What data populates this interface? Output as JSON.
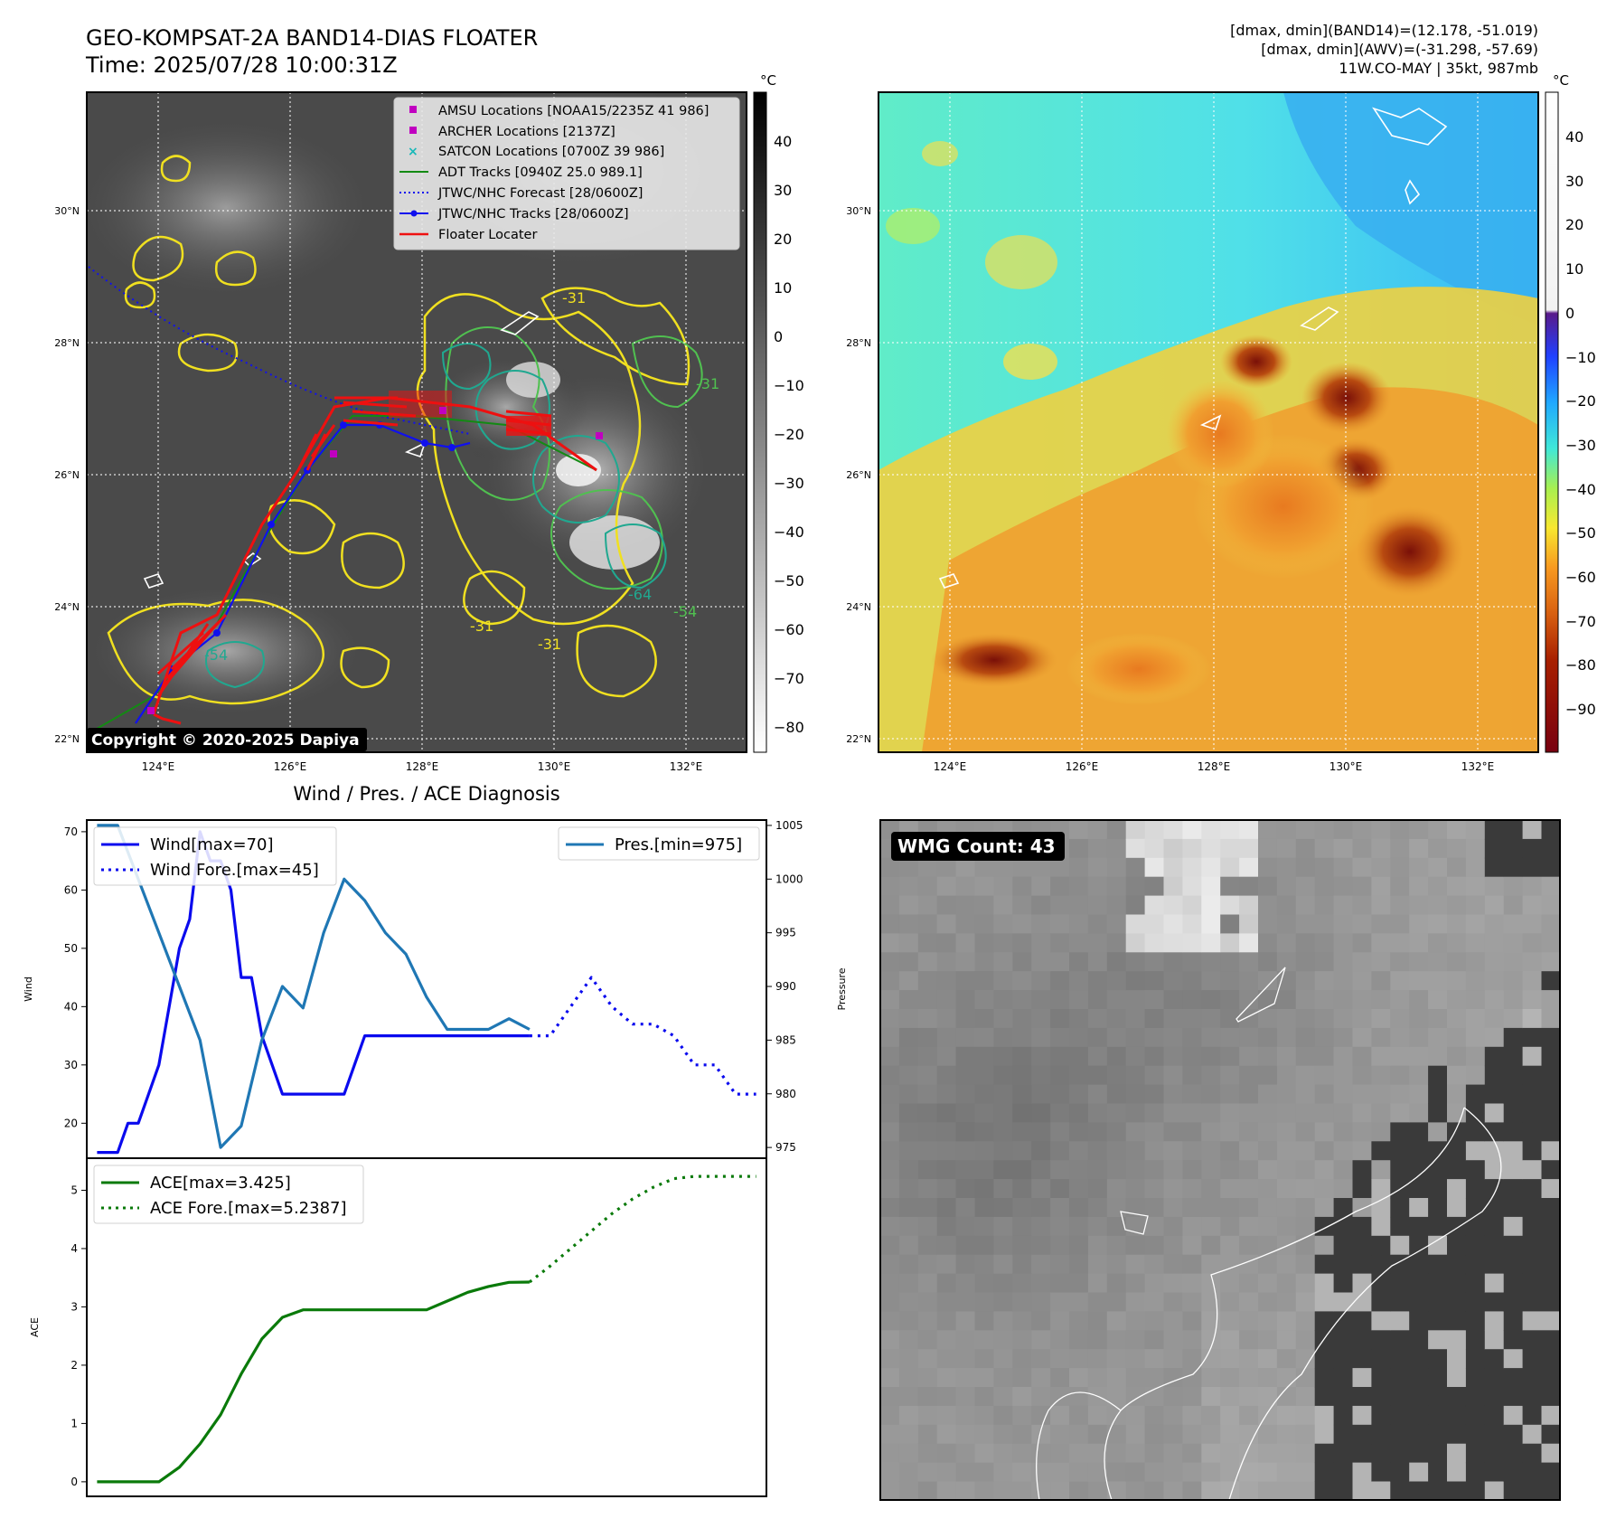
{
  "header": {
    "title": "GEO-KOMPSAT-2A BAND14-DIAS FLOATER",
    "time": "Time: 2025/07/28 10:00:31Z",
    "stats_line1": "[dmax, dmin](BAND14)=(12.178, -51.019)",
    "stats_line2": "[dmax, dmin](AWV)=(-31.298, -57.69)",
    "stats_line3": "11W.CO-MAY | 35kt, 987mb"
  },
  "map": {
    "lat_ticks": [
      "30°N",
      "28°N",
      "26°N",
      "24°N",
      "22°N"
    ],
    "lon_ticks": [
      "124°E",
      "126°E",
      "128°E",
      "130°E",
      "132°E"
    ],
    "copyright": "Copyright © 2020-2025 Dapiya",
    "contour_labels": [
      "-31",
      "-54",
      "-64",
      "-31",
      "-54",
      "-31",
      "-31"
    ]
  },
  "legend": {
    "items": [
      {
        "label": "AMSU Locations [NOAA15/2235Z 41 986]",
        "marker": "square",
        "color": "#c000c0"
      },
      {
        "label": "ARCHER Locations [2137Z]",
        "marker": "square",
        "color": "#c000c0"
      },
      {
        "label": "SATCON Locations [0700Z 39 986]",
        "marker": "x",
        "color": "#17b8b8"
      },
      {
        "label": "ADT Tracks [0940Z 25.0 989.1]",
        "marker": "line",
        "color": "#138a13"
      },
      {
        "label": "JTWC/NHC Forecast [28/0600Z]",
        "marker": "dotted",
        "color": "#1010ee"
      },
      {
        "label": "JTWC/NHC Tracks [28/0600Z]",
        "marker": "line-dot",
        "color": "#1010ee"
      },
      {
        "label": "Floater Locater",
        "marker": "line",
        "color": "#ee1010"
      }
    ]
  },
  "colorbar_gray": {
    "unit": "°C",
    "ticks": [
      "40",
      "30",
      "20",
      "10",
      "0",
      "−10",
      "−20",
      "−30",
      "−40",
      "−50",
      "−60",
      "−70",
      "−80"
    ]
  },
  "colorbar_color": {
    "unit": "°C",
    "ticks": [
      "40",
      "30",
      "20",
      "10",
      "0",
      "−10",
      "−20",
      "−30",
      "−40",
      "−50",
      "−60",
      "−70",
      "−80",
      "−90"
    ]
  },
  "wmg": {
    "label": "WMG Count: 43"
  },
  "chart_data": [
    {
      "type": "line",
      "title": "Wind / Pres. / ACE Diagnosis",
      "ylabel": "Wind",
      "y2label": "Pressure",
      "ylim": [
        14,
        72
      ],
      "y2lim": [
        974,
        1005.5
      ],
      "yticks": [
        20,
        30,
        40,
        50,
        60,
        70
      ],
      "y2ticks": [
        975,
        980,
        985,
        990,
        995,
        1000,
        1005
      ],
      "legend_left": [
        "Wind[max=70]",
        "Wind Fore.[max=45]"
      ],
      "legend_right": [
        "Pres.[min=975]"
      ],
      "series": [
        {
          "name": "Wind[max=70]",
          "color": "#0a0aee",
          "style": "solid",
          "x": [
            0,
            1,
            2,
            3,
            4,
            5,
            6,
            7,
            8,
            9,
            10,
            11,
            12,
            13,
            14,
            15,
            16,
            17,
            18,
            19,
            20,
            21,
            22,
            23,
            24,
            25,
            26,
            27,
            28,
            29,
            30,
            31,
            32,
            33,
            34,
            35,
            36,
            37,
            38,
            39,
            40,
            41,
            42
          ],
          "values": [
            15,
            15,
            15,
            20,
            20,
            25,
            30,
            40,
            50,
            55,
            70,
            65,
            65,
            60,
            45,
            45,
            35,
            30,
            25,
            25,
            25,
            25,
            25,
            25,
            25,
            30,
            35,
            35,
            35,
            35,
            35,
            35,
            35,
            35,
            35,
            35,
            35,
            35,
            35,
            35,
            35,
            35,
            35
          ]
        },
        {
          "name": "Wind Fore.[max=45]",
          "color": "#0a0aee",
          "style": "dotted",
          "x": [
            42,
            44,
            46,
            48,
            50,
            52,
            54,
            56,
            58,
            60,
            62,
            64
          ],
          "values": [
            35,
            35,
            40,
            45,
            40,
            37,
            37,
            35,
            30,
            30,
            25,
            25
          ]
        },
        {
          "name": "Pres.[min=975]",
          "color": "#1f77b4",
          "style": "solid",
          "x": [
            0,
            2,
            4,
            6,
            8,
            10,
            12,
            14,
            16,
            18,
            20,
            22,
            24,
            26,
            28,
            30,
            32,
            34,
            36,
            38,
            40,
            42
          ],
          "values": [
            1005,
            1005,
            1000,
            995,
            990,
            985,
            975,
            977,
            985,
            990,
            988,
            995,
            1000,
            998,
            995,
            993,
            989,
            986,
            986,
            986,
            987,
            986
          ]
        }
      ]
    },
    {
      "type": "line",
      "ylabel": "ACE",
      "ylim": [
        -0.25,
        5.55
      ],
      "yticks": [
        0,
        1,
        2,
        3,
        4,
        5
      ],
      "legend": [
        "ACE[max=3.425]",
        "ACE Fore.[max=5.2387]"
      ],
      "series": [
        {
          "name": "ACE[max=3.425]",
          "color": "#0a7a0a",
          "style": "solid",
          "x": [
            0,
            2,
            4,
            6,
            8,
            10,
            12,
            14,
            16,
            18,
            20,
            22,
            24,
            26,
            28,
            30,
            32,
            34,
            36,
            38,
            40,
            42
          ],
          "values": [
            0,
            0,
            0,
            0,
            0.25,
            0.65,
            1.15,
            1.85,
            2.45,
            2.82,
            2.95,
            2.95,
            2.95,
            2.95,
            2.95,
            2.95,
            2.95,
            3.1,
            3.25,
            3.35,
            3.42,
            3.425
          ]
        },
        {
          "name": "ACE Fore.[max=5.2387]",
          "color": "#0a7a0a",
          "style": "dotted",
          "x": [
            42,
            44,
            46,
            48,
            50,
            52,
            54,
            56,
            58,
            60,
            62,
            64
          ],
          "values": [
            3.425,
            3.7,
            4.0,
            4.3,
            4.6,
            4.85,
            5.05,
            5.2,
            5.2387,
            5.2387,
            5.2387,
            5.2387
          ]
        }
      ]
    }
  ]
}
